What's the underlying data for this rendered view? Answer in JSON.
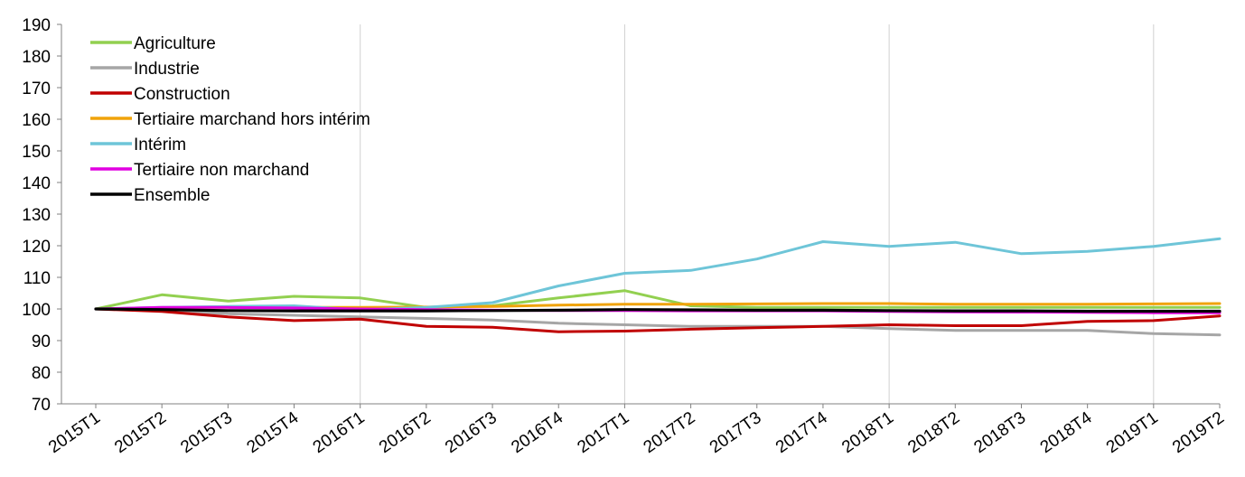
{
  "chart_data": {
    "type": "line",
    "title": "",
    "xlabel": "",
    "ylabel": "",
    "ylim": [
      70,
      190
    ],
    "yticks": [
      70,
      80,
      90,
      100,
      110,
      120,
      130,
      140,
      150,
      160,
      170,
      180,
      190
    ],
    "categories": [
      "2015T1",
      "2015T2",
      "2015T3",
      "2015T4",
      "2016T1",
      "2016T2",
      "2016T3",
      "2016T4",
      "2017T1",
      "2017T2",
      "2017T3",
      "2017T4",
      "2018T1",
      "2018T2",
      "2018T3",
      "2018T4",
      "2019T1",
      "2019T2"
    ],
    "grid": "vertical lines every 4 quarters",
    "legend_position": "top-left",
    "series": [
      {
        "name": "Agriculture",
        "color": "#92d050",
        "values": [
          100,
          104.5,
          102.5,
          104,
          103.5,
          100.5,
          101,
          103.5,
          105.8,
          101,
          100.5,
          100.5,
          100.5,
          100.5,
          100.5,
          100.5,
          100.5,
          100.5
        ]
      },
      {
        "name": "Industrie",
        "color": "#a6a6a6",
        "values": [
          100,
          99.5,
          98.5,
          98,
          97.5,
          97,
          96.5,
          95.5,
          95,
          94.5,
          94.5,
          94.5,
          93.8,
          93.2,
          93.2,
          93.2,
          92.2,
          91.8
        ]
      },
      {
        "name": "Construction",
        "color": "#c00000",
        "values": [
          100,
          99.2,
          97.5,
          96.3,
          96.8,
          94.5,
          94.2,
          92.8,
          93,
          93.6,
          94.1,
          94.5,
          95,
          94.7,
          94.7,
          96.1,
          96.3,
          97.8
        ]
      },
      {
        "name": "Tertiaire marchand hors intérim",
        "color": "#f0a30a",
        "values": [
          100,
          100.3,
          100.5,
          100.5,
          100.5,
          100.6,
          100.8,
          101.2,
          101.5,
          101.5,
          101.6,
          101.7,
          101.7,
          101.5,
          101.5,
          101.5,
          101.6,
          101.7
        ]
      },
      {
        "name": "Intérim",
        "color": "#6ec5d8",
        "values": [
          100,
          100.5,
          100.8,
          101,
          99.7,
          100.5,
          102,
          107.3,
          111.3,
          112.2,
          115.8,
          121.3,
          119.8,
          121.1,
          117.5,
          118.2,
          119.8,
          122.2
        ]
      },
      {
        "name": "Tertiaire non marchand",
        "color": "#e100e1",
        "values": [
          100,
          100.5,
          100.5,
          100.3,
          100,
          99.8,
          99.6,
          99.5,
          99.5,
          99.4,
          99.4,
          99.4,
          99.2,
          99.1,
          99,
          98.9,
          98.8,
          98.8
        ]
      },
      {
        "name": "Ensemble",
        "color": "#000000",
        "values": [
          100,
          99.8,
          99.5,
          99.4,
          99.4,
          99.4,
          99.5,
          99.6,
          99.8,
          99.7,
          99.6,
          99.6,
          99.5,
          99.4,
          99.4,
          99.3,
          99.3,
          99.3
        ]
      }
    ]
  }
}
